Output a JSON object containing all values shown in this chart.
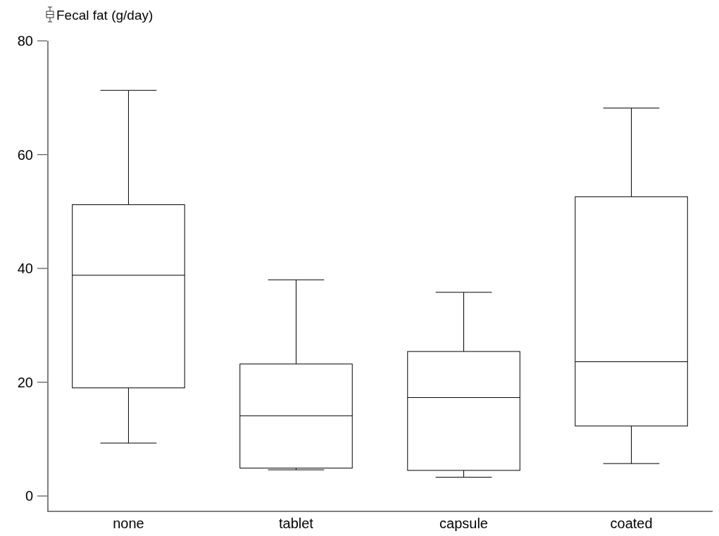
{
  "chart_data": {
    "type": "box",
    "ylabel": "Fecal fat (g/day)",
    "categories": [
      "none",
      "tablet",
      "capsule",
      "coated"
    ],
    "boxes": [
      {
        "low": 9.3,
        "q1": 19.0,
        "median": 38.8,
        "q3": 51.2,
        "high": 71.3
      },
      {
        "low": 4.6,
        "q1": 4.9,
        "median": 14.1,
        "q3": 23.2,
        "high": 38.0
      },
      {
        "low": 3.3,
        "q1": 4.5,
        "median": 17.3,
        "q3": 25.4,
        "high": 35.8
      },
      {
        "low": 5.7,
        "q1": 12.3,
        "median": 23.6,
        "q3": 52.6,
        "high": 68.2
      }
    ],
    "ylim": [
      -2.7,
      80
    ],
    "yticks": [
      0,
      20,
      40,
      60,
      80
    ]
  }
}
